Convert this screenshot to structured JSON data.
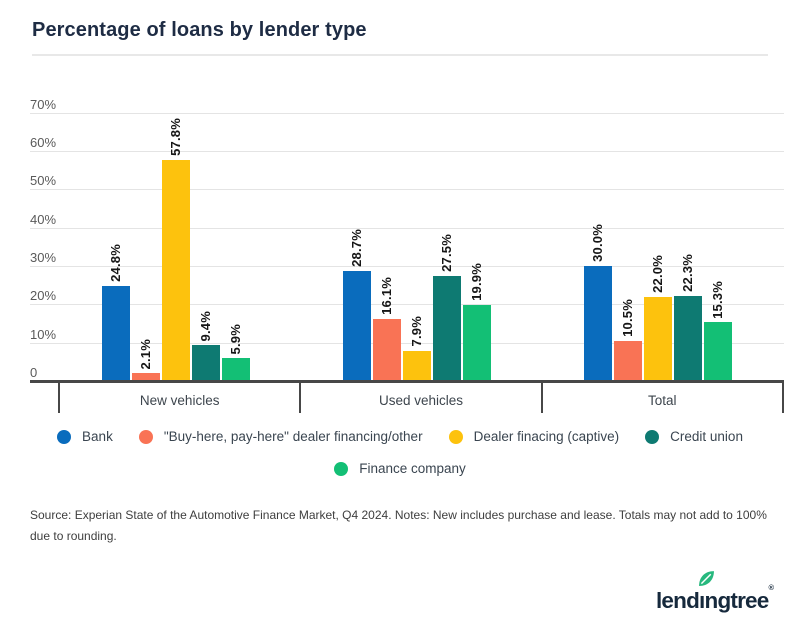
{
  "chart_data": {
    "type": "bar",
    "title": "Percentage of loans by lender type",
    "categories": [
      "New vehicles",
      "Used vehicles",
      "Total"
    ],
    "series": [
      {
        "name": "Bank",
        "color": "#0a6cbd",
        "values": [
          24.8,
          28.7,
          30.0
        ]
      },
      {
        "name": "\"Buy-here, pay-here\" dealer financing/other",
        "color": "#f97355",
        "values": [
          2.1,
          16.1,
          10.5
        ]
      },
      {
        "name": "Dealer finacing (captive)",
        "color": "#fdc20d",
        "values": [
          57.8,
          7.9,
          22.0
        ]
      },
      {
        "name": "Credit union",
        "color": "#0e7a72",
        "values": [
          9.4,
          27.5,
          22.3
        ]
      },
      {
        "name": "Finance company",
        "color": "#13bf75",
        "values": [
          5.9,
          19.9,
          15.3
        ]
      }
    ],
    "value_decimals": 1,
    "value_suffix": "%",
    "y_ticks": [
      "0",
      "10%",
      "20%",
      "30%",
      "40%",
      "50%",
      "60%",
      "70%"
    ],
    "ylim": [
      0,
      70
    ],
    "grid": true,
    "legend_position": "bottom"
  },
  "source_lines": [
    "Source: Experian State of the Automotive Finance Market, Q4 2024. Notes: New includes purchase and lease. Totals may not add to 100%",
    "due to rounding."
  ],
  "logo": {
    "text": "lendingtree",
    "registered": "®",
    "brand_navy": "#16293c",
    "leaf_green": "#27b87e"
  }
}
